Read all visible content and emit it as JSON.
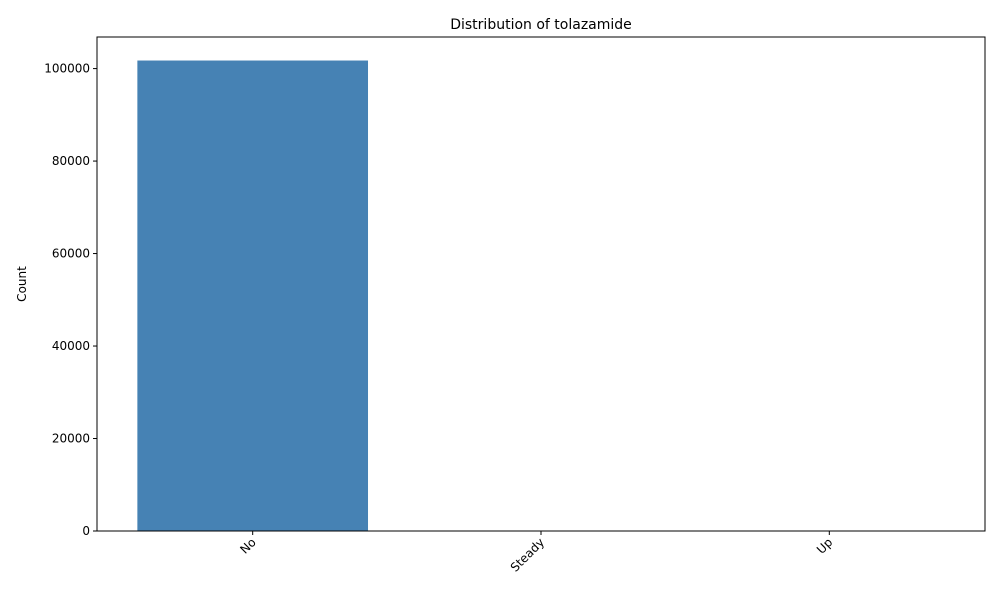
{
  "chart_data": {
    "type": "bar",
    "title": "Distribution of tolazamide",
    "xlabel": "",
    "ylabel": "Count",
    "categories": [
      "No",
      "Steady",
      "Up"
    ],
    "values": [
      101743,
      38,
      1
    ],
    "ylim": [
      0,
      106830
    ],
    "yticks": [
      0,
      20000,
      40000,
      60000,
      80000,
      100000
    ],
    "bar_color": "#4682b4",
    "grid": false,
    "legend": "none"
  }
}
